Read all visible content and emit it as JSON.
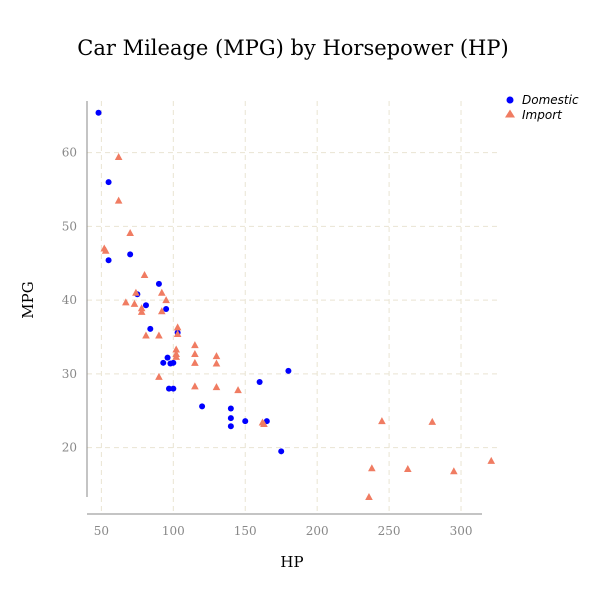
{
  "chart_data": {
    "type": "scatter",
    "title": "Car Mileage (MPG) by Horsepower (HP)",
    "xlabel": "HP",
    "ylabel": "MPG",
    "xlim": [
      40,
      325
    ],
    "ylim": [
      11,
      67
    ],
    "xticks": [
      50,
      100,
      150,
      200,
      250,
      300
    ],
    "yticks": [
      20,
      30,
      40,
      50,
      60
    ],
    "grid": true,
    "legend_position": "top-right",
    "series": [
      {
        "name": "Domestic",
        "marker": "circle",
        "color": "#0000ff",
        "points": [
          [
            48,
            65.4
          ],
          [
            55,
            56.0
          ],
          [
            55,
            45.4
          ],
          [
            70,
            46.2
          ],
          [
            75,
            40.8
          ],
          [
            81,
            39.3
          ],
          [
            84,
            36.1
          ],
          [
            90,
            42.2
          ],
          [
            95,
            38.8
          ],
          [
            96,
            32.2
          ],
          [
            93,
            31.5
          ],
          [
            98,
            31.4
          ],
          [
            100,
            31.5
          ],
          [
            97,
            28.0
          ],
          [
            100,
            28.0
          ],
          [
            103,
            35.6
          ],
          [
            120,
            25.6
          ],
          [
            140,
            25.3
          ],
          [
            140,
            24.0
          ],
          [
            140,
            22.9
          ],
          [
            150,
            23.6
          ],
          [
            160,
            28.9
          ],
          [
            165,
            23.6
          ],
          [
            180,
            30.4
          ],
          [
            175,
            19.5
          ]
        ]
      },
      {
        "name": "Import",
        "marker": "triangle",
        "color": "#f07c62",
        "points": [
          [
            52,
            47.0
          ],
          [
            53,
            46.7
          ],
          [
            62,
            59.4
          ],
          [
            62,
            53.5
          ],
          [
            67,
            39.7
          ],
          [
            70,
            49.1
          ],
          [
            74,
            41.0
          ],
          [
            73,
            39.5
          ],
          [
            78,
            38.9
          ],
          [
            78,
            38.4
          ],
          [
            80,
            43.4
          ],
          [
            81,
            35.2
          ],
          [
            90,
            35.2
          ],
          [
            90,
            29.6
          ],
          [
            92,
            41.0
          ],
          [
            92,
            38.5
          ],
          [
            95,
            40.0
          ],
          [
            102,
            33.3
          ],
          [
            102,
            32.7
          ],
          [
            102,
            32.3
          ],
          [
            103,
            36.3
          ],
          [
            103,
            35.4
          ],
          [
            115,
            33.9
          ],
          [
            115,
            32.7
          ],
          [
            115,
            31.5
          ],
          [
            115,
            28.3
          ],
          [
            130,
            32.4
          ],
          [
            130,
            31.4
          ],
          [
            130,
            28.2
          ],
          [
            145,
            27.8
          ],
          [
            162,
            23.4
          ],
          [
            163,
            23.2
          ],
          [
            245,
            23.6
          ],
          [
            280,
            23.5
          ],
          [
            238,
            17.2
          ],
          [
            263,
            17.1
          ],
          [
            295,
            16.8
          ],
          [
            321,
            18.2
          ],
          [
            236,
            13.3
          ]
        ]
      }
    ]
  }
}
